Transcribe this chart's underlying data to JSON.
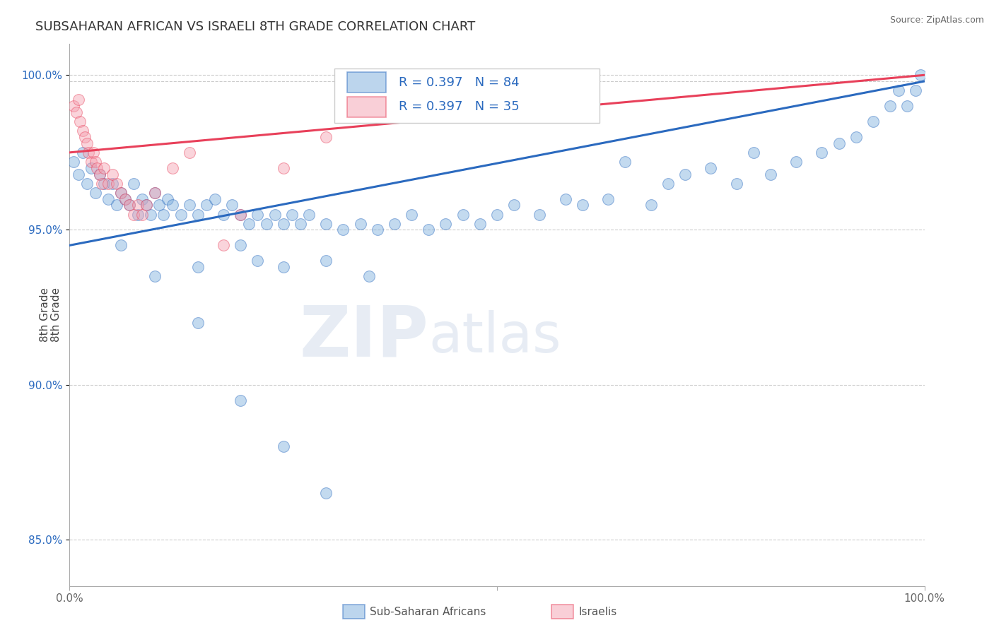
{
  "title": "SUBSAHARAN AFRICAN VS ISRAELI 8TH GRADE CORRELATION CHART",
  "source_text": "Source: ZipAtlas.com",
  "ylabel": "8th Grade",
  "legend_label_blue": "Sub-Saharan Africans",
  "legend_label_pink": "Israelis",
  "r_blue": "R = 0.397",
  "n_blue": "N = 84",
  "r_pink": "R = 0.397",
  "n_pink": "N = 35",
  "watermark_zip": "ZIP",
  "watermark_atlas": "atlas",
  "blue_color": "#7aaddc",
  "pink_color": "#f4a0b0",
  "blue_line_color": "#2b6abf",
  "pink_line_color": "#e8405a",
  "blue_scatter": [
    [
      0.5,
      97.2
    ],
    [
      1.0,
      96.8
    ],
    [
      1.5,
      97.5
    ],
    [
      2.0,
      96.5
    ],
    [
      2.5,
      97.0
    ],
    [
      3.0,
      96.2
    ],
    [
      3.5,
      96.8
    ],
    [
      4.0,
      96.5
    ],
    [
      4.5,
      96.0
    ],
    [
      5.0,
      96.5
    ],
    [
      5.5,
      95.8
    ],
    [
      6.0,
      96.2
    ],
    [
      6.5,
      96.0
    ],
    [
      7.0,
      95.8
    ],
    [
      7.5,
      96.5
    ],
    [
      8.0,
      95.5
    ],
    [
      8.5,
      96.0
    ],
    [
      9.0,
      95.8
    ],
    [
      9.5,
      95.5
    ],
    [
      10.0,
      96.2
    ],
    [
      10.5,
      95.8
    ],
    [
      11.0,
      95.5
    ],
    [
      11.5,
      96.0
    ],
    [
      12.0,
      95.8
    ],
    [
      13.0,
      95.5
    ],
    [
      14.0,
      95.8
    ],
    [
      15.0,
      95.5
    ],
    [
      16.0,
      95.8
    ],
    [
      17.0,
      96.0
    ],
    [
      18.0,
      95.5
    ],
    [
      19.0,
      95.8
    ],
    [
      20.0,
      95.5
    ],
    [
      21.0,
      95.2
    ],
    [
      22.0,
      95.5
    ],
    [
      23.0,
      95.2
    ],
    [
      24.0,
      95.5
    ],
    [
      25.0,
      95.2
    ],
    [
      26.0,
      95.5
    ],
    [
      27.0,
      95.2
    ],
    [
      28.0,
      95.5
    ],
    [
      30.0,
      95.2
    ],
    [
      32.0,
      95.0
    ],
    [
      34.0,
      95.2
    ],
    [
      36.0,
      95.0
    ],
    [
      38.0,
      95.2
    ],
    [
      40.0,
      95.5
    ],
    [
      42.0,
      95.0
    ],
    [
      44.0,
      95.2
    ],
    [
      46.0,
      95.5
    ],
    [
      48.0,
      95.2
    ],
    [
      50.0,
      95.5
    ],
    [
      52.0,
      95.8
    ],
    [
      55.0,
      95.5
    ],
    [
      58.0,
      96.0
    ],
    [
      60.0,
      95.8
    ],
    [
      63.0,
      96.0
    ],
    [
      65.0,
      97.2
    ],
    [
      68.0,
      95.8
    ],
    [
      70.0,
      96.5
    ],
    [
      72.0,
      96.8
    ],
    [
      75.0,
      97.0
    ],
    [
      78.0,
      96.5
    ],
    [
      80.0,
      97.5
    ],
    [
      82.0,
      96.8
    ],
    [
      85.0,
      97.2
    ],
    [
      88.0,
      97.5
    ],
    [
      90.0,
      97.8
    ],
    [
      92.0,
      98.0
    ],
    [
      94.0,
      98.5
    ],
    [
      96.0,
      99.0
    ],
    [
      97.0,
      99.5
    ],
    [
      98.0,
      99.0
    ],
    [
      99.0,
      99.5
    ],
    [
      99.5,
      100.0
    ],
    [
      6.0,
      94.5
    ],
    [
      10.0,
      93.5
    ],
    [
      15.0,
      93.8
    ],
    [
      20.0,
      94.5
    ],
    [
      22.0,
      94.0
    ],
    [
      25.0,
      93.8
    ],
    [
      30.0,
      94.0
    ],
    [
      35.0,
      93.5
    ],
    [
      15.0,
      92.0
    ],
    [
      20.0,
      89.5
    ],
    [
      25.0,
      88.0
    ],
    [
      30.0,
      86.5
    ]
  ],
  "pink_scatter": [
    [
      0.5,
      99.0
    ],
    [
      0.8,
      98.8
    ],
    [
      1.0,
      99.2
    ],
    [
      1.2,
      98.5
    ],
    [
      1.5,
      98.2
    ],
    [
      1.8,
      98.0
    ],
    [
      2.0,
      97.8
    ],
    [
      2.2,
      97.5
    ],
    [
      2.5,
      97.2
    ],
    [
      2.8,
      97.5
    ],
    [
      3.0,
      97.2
    ],
    [
      3.2,
      97.0
    ],
    [
      3.5,
      96.8
    ],
    [
      3.8,
      96.5
    ],
    [
      4.0,
      97.0
    ],
    [
      4.5,
      96.5
    ],
    [
      5.0,
      96.8
    ],
    [
      5.5,
      96.5
    ],
    [
      6.0,
      96.2
    ],
    [
      6.5,
      96.0
    ],
    [
      7.0,
      95.8
    ],
    [
      7.5,
      95.5
    ],
    [
      8.0,
      95.8
    ],
    [
      8.5,
      95.5
    ],
    [
      9.0,
      95.8
    ],
    [
      10.0,
      96.2
    ],
    [
      12.0,
      97.0
    ],
    [
      14.0,
      97.5
    ],
    [
      18.0,
      94.5
    ],
    [
      20.0,
      95.5
    ],
    [
      25.0,
      97.0
    ],
    [
      30.0,
      98.0
    ],
    [
      40.0,
      98.8
    ],
    [
      50.0,
      99.2
    ],
    [
      60.0,
      99.5
    ]
  ],
  "xlim": [
    0,
    100
  ],
  "ylim": [
    83.5,
    101.0
  ],
  "yticks": [
    85.0,
    90.0,
    95.0,
    100.0
  ],
  "ytick_labels": [
    "85.0%",
    "90.0%",
    "95.0%",
    "100.0%"
  ],
  "grid_color": "#cccccc",
  "bg_color": "#ffffff",
  "top_grid_y": 99.8,
  "blue_line_x": [
    0,
    100
  ],
  "blue_line_y": [
    94.5,
    99.8
  ],
  "pink_line_x": [
    0,
    100
  ],
  "pink_line_y": [
    97.5,
    100.0
  ]
}
